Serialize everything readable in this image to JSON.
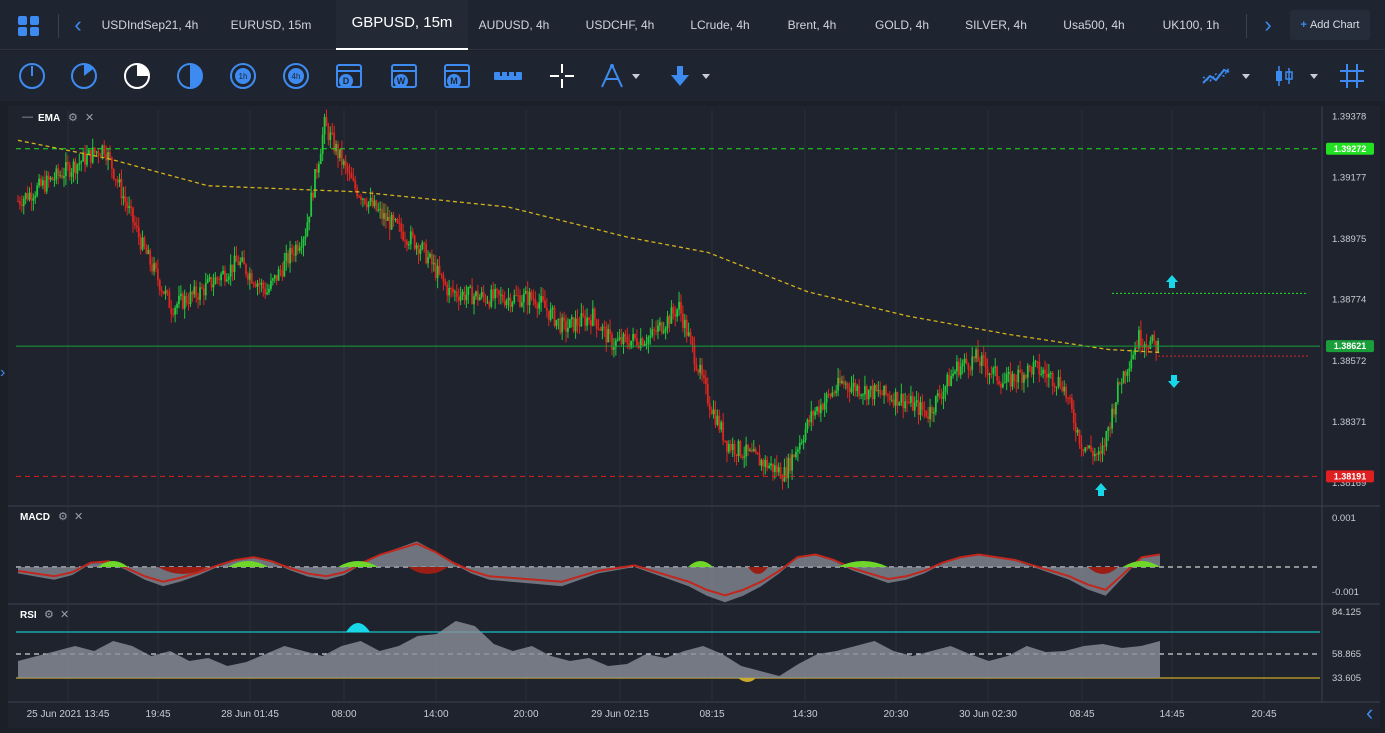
{
  "tabs": [
    {
      "label": "USDIndSep21, 4h"
    },
    {
      "label": "EURUSD, 15m"
    },
    {
      "label": "GBPUSD, 15m",
      "active": true
    },
    {
      "label": "AUDUSD, 4h"
    },
    {
      "label": "USDCHF, 4h"
    },
    {
      "label": "LCrude, 4h"
    },
    {
      "label": "Brent, 4h"
    },
    {
      "label": "GOLD, 4h"
    },
    {
      "label": "SILVER, 4h"
    },
    {
      "label": "Usa500, 4h"
    },
    {
      "label": "UK100, 1h"
    }
  ],
  "add_chart_label": "Add Chart",
  "toolbar": {
    "tools": [
      "clock-1-icon",
      "clock-2-icon",
      "clock-3-icon",
      "clock-4-icon",
      "timeframe-1h-icon",
      "timeframe-4h-icon",
      "calendar-d-icon",
      "calendar-w-icon",
      "calendar-m-icon",
      "ruler-icon",
      "crosshair-icon",
      "compass-drawing-icon",
      "arrow-down-tool-icon"
    ],
    "labels": {
      "tf1h": "1h",
      "tf4h": "4h",
      "cal_d": "D",
      "cal_w": "W",
      "cal_m": "M"
    }
  },
  "panels": {
    "main_label": "EMA",
    "macd_label": "MACD",
    "rsi_label": "RSI"
  },
  "chart_data": [
    {
      "type": "candlestick",
      "symbol": "GBPUSD",
      "timeframe": "15m",
      "indicator": "EMA",
      "ylim": [
        1.381,
        1.394
      ],
      "y_ticks": [
        "1.39378",
        "1.39177",
        "1.38975",
        "1.38774",
        "1.38572",
        "1.38371",
        "1.38169"
      ],
      "levels": [
        {
          "value": 1.39272,
          "label": "1.39272",
          "color": "#22e022",
          "style": "dashed"
        },
        {
          "value": 1.38621,
          "label": "1.38621",
          "color": "#1a9e3a",
          "style": "solid"
        },
        {
          "value": 1.38191,
          "label": "1.38191",
          "color": "#e02020",
          "style": "dashed"
        }
      ],
      "x_ticks": [
        "25 Jun 2021 13:45",
        "19:45",
        "28 Jun 01:45",
        "08:00",
        "14:00",
        "20:00",
        "29 Jun 02:15",
        "08:15",
        "14:30",
        "20:30",
        "30 Jun 02:30",
        "08:45",
        "14:45",
        "20:45"
      ]
    },
    {
      "type": "area",
      "indicator": "MACD",
      "ylim": [
        -0.001,
        0.001
      ],
      "y_ticks": [
        "0.001",
        "-0.001"
      ]
    },
    {
      "type": "area",
      "indicator": "RSI",
      "y_ticks": [
        "84.125",
        "58.865",
        "33.605"
      ],
      "levels": [
        84.125,
        58.865,
        33.605
      ]
    }
  ],
  "colors": {
    "bull": "#22c93a",
    "bear": "#e0261e",
    "accent": "#3d8bf0",
    "ema": "#d4b21c",
    "cyan": "#17d7e8"
  }
}
